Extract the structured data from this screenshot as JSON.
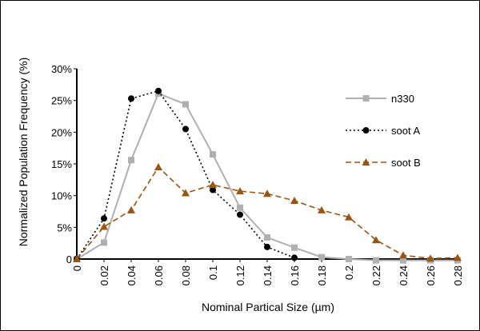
{
  "chart_data": {
    "type": "line",
    "title": "",
    "xlabel": "Nominal Partical Size (µm)",
    "ylabel": "Normalized Population Frequency  (%)",
    "xlim": [
      0,
      0.28
    ],
    "ylim": [
      0,
      30
    ],
    "grid": false,
    "legend_position": "right",
    "x_tick_labels": [
      "0",
      "0.02",
      "0.04",
      "0.06",
      "0.08",
      "0.1",
      "0.12",
      "0.14",
      "0.16",
      "0.18",
      "0.2",
      "0.22",
      "0.24",
      "0.26",
      "0.28"
    ],
    "y_tick_labels": [
      "0",
      "5%",
      "10%",
      "15%",
      "20%",
      "25%",
      "30%"
    ],
    "x": [
      0,
      0.02,
      0.04,
      0.06,
      0.08,
      0.1,
      0.12,
      0.14,
      0.16,
      0.18,
      0.2,
      0.22,
      0.24,
      0.26,
      0.28
    ],
    "series": [
      {
        "name": "n330",
        "color": "#b0b0b0",
        "style": "solid",
        "marker": "square",
        "values": [
          0,
          2.6,
          15.6,
          26.1,
          24.4,
          16.5,
          8.1,
          3.4,
          1.8,
          0.3,
          0.0,
          -0.2,
          -0.2,
          -0.2,
          -0.2
        ]
      },
      {
        "name": "soot A",
        "color": "#000000",
        "style": "dotted",
        "marker": "circle",
        "values": [
          0,
          6.4,
          25.3,
          26.5,
          20.5,
          10.9,
          7.0,
          1.9,
          0.2,
          null,
          null,
          null,
          null,
          null,
          null
        ]
      },
      {
        "name": "soot B",
        "color": "#9a5510",
        "style": "dashed",
        "marker": "triangle",
        "values": [
          0,
          5.1,
          7.7,
          14.5,
          10.4,
          11.7,
          10.7,
          10.3,
          9.2,
          7.7,
          6.6,
          3.0,
          0.6,
          0.1,
          0.2
        ]
      }
    ]
  }
}
